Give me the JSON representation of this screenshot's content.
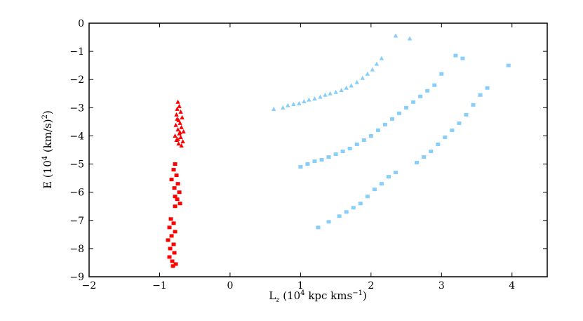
{
  "chart_data": {
    "type": "scatter",
    "title": "",
    "xlabel": "L_z (10^4 kpc kms^-1)",
    "ylabel": "E (10^4 (km/s)^2)",
    "xlabel_parts": {
      "sym": "L",
      "sub": "z",
      "pre": " (10",
      "sup1": "4",
      "mid": " kpc kms",
      "sup2": "−1",
      "post": ")"
    },
    "ylabel_parts": {
      "pre": "E (10",
      "sup1": "4",
      "mid": " (km/s)",
      "sup2": "2",
      "post": ")"
    },
    "xlim": [
      -2,
      4.5
    ],
    "ylim": [
      -9,
      0
    ],
    "xticks": [
      "−2",
      "−1",
      "0",
      "1",
      "2",
      "3",
      "4"
    ],
    "xtick_values": [
      -2,
      -1,
      0,
      1,
      2,
      3,
      4
    ],
    "yticks": [
      "0",
      "−1",
      "−2",
      "−3",
      "−4",
      "−5",
      "−6",
      "−7",
      "−8",
      "−9"
    ],
    "ytick_values": [
      0,
      -1,
      -2,
      -3,
      -4,
      -5,
      -6,
      -7,
      -8,
      -9
    ],
    "grid": false,
    "series": [
      {
        "marker": "triangle",
        "color": "#ff0000",
        "points": [
          [
            -0.74,
            -2.8
          ],
          [
            -0.72,
            -2.95
          ],
          [
            -0.75,
            -3.05
          ],
          [
            -0.7,
            -3.15
          ],
          [
            -0.76,
            -3.25
          ],
          [
            -0.68,
            -3.35
          ],
          [
            -0.73,
            -3.45
          ],
          [
            -0.71,
            -3.55
          ],
          [
            -0.77,
            -3.62
          ],
          [
            -0.69,
            -3.7
          ],
          [
            -0.74,
            -3.78
          ],
          [
            -0.66,
            -3.85
          ],
          [
            -0.72,
            -3.92
          ],
          [
            -0.78,
            -4.0
          ],
          [
            -0.7,
            -4.05
          ],
          [
            -0.74,
            -4.12
          ],
          [
            -0.67,
            -4.2
          ],
          [
            -0.73,
            -4.28
          ],
          [
            -0.69,
            -4.35
          ],
          [
            -0.75,
            -3.4
          ],
          [
            -0.71,
            -3.88
          ],
          [
            -0.76,
            -4.15
          ]
        ]
      },
      {
        "marker": "square",
        "color": "#ff0000",
        "points": [
          [
            -0.78,
            -5.0
          ],
          [
            -0.8,
            -5.2
          ],
          [
            -0.76,
            -5.4
          ],
          [
            -0.83,
            -5.55
          ],
          [
            -0.74,
            -5.7
          ],
          [
            -0.79,
            -5.85
          ],
          [
            -0.72,
            -6.0
          ],
          [
            -0.78,
            -6.15
          ],
          [
            -0.75,
            -6.25
          ],
          [
            -0.71,
            -6.4
          ],
          [
            -0.78,
            -6.5
          ],
          [
            -0.84,
            -6.95
          ],
          [
            -0.8,
            -7.1
          ],
          [
            -0.86,
            -7.25
          ],
          [
            -0.78,
            -7.4
          ],
          [
            -0.83,
            -7.55
          ],
          [
            -0.88,
            -7.7
          ],
          [
            -0.8,
            -7.85
          ],
          [
            -0.85,
            -8.0
          ],
          [
            -0.79,
            -8.15
          ],
          [
            -0.86,
            -8.3
          ],
          [
            -0.82,
            -8.45
          ],
          [
            -0.77,
            -8.55
          ],
          [
            -0.81,
            -8.62
          ]
        ]
      },
      {
        "marker": "triangle",
        "color": "#87cefa",
        "points": [
          [
            0.62,
            -3.05
          ],
          [
            0.75,
            -3.0
          ],
          [
            0.82,
            -2.92
          ],
          [
            0.9,
            -2.88
          ],
          [
            0.98,
            -2.85
          ],
          [
            1.05,
            -2.78
          ],
          [
            1.12,
            -2.72
          ],
          [
            1.2,
            -2.68
          ],
          [
            1.28,
            -2.62
          ],
          [
            1.35,
            -2.55
          ],
          [
            1.42,
            -2.5
          ],
          [
            1.5,
            -2.45
          ],
          [
            1.58,
            -2.38
          ],
          [
            1.65,
            -2.3
          ],
          [
            1.72,
            -2.22
          ],
          [
            1.8,
            -2.1
          ],
          [
            1.88,
            -1.95
          ],
          [
            1.95,
            -1.8
          ],
          [
            2.02,
            -1.65
          ],
          [
            2.08,
            -1.45
          ],
          [
            2.15,
            -1.25
          ],
          [
            2.35,
            -0.45
          ],
          [
            2.55,
            -0.55
          ]
        ]
      },
      {
        "marker": "square",
        "color": "#87cefa",
        "points": [
          [
            1.0,
            -5.1
          ],
          [
            1.1,
            -5.0
          ],
          [
            1.2,
            -4.9
          ],
          [
            1.3,
            -4.85
          ],
          [
            1.4,
            -4.75
          ],
          [
            1.5,
            -4.65
          ],
          [
            1.6,
            -4.55
          ],
          [
            1.7,
            -4.45
          ],
          [
            1.8,
            -4.3
          ],
          [
            1.9,
            -4.15
          ],
          [
            2.0,
            -4.0
          ],
          [
            2.1,
            -3.8
          ],
          [
            2.2,
            -3.6
          ],
          [
            2.3,
            -3.4
          ],
          [
            2.4,
            -3.2
          ],
          [
            2.5,
            -3.0
          ],
          [
            2.6,
            -2.8
          ],
          [
            2.7,
            -2.6
          ],
          [
            2.8,
            -2.4
          ],
          [
            2.9,
            -2.2
          ],
          [
            3.0,
            -1.8
          ],
          [
            3.2,
            -1.15
          ],
          [
            3.3,
            -1.25
          ]
        ]
      },
      {
        "marker": "square",
        "color": "#87cefa",
        "points": [
          [
            1.25,
            -7.25
          ],
          [
            1.4,
            -7.05
          ],
          [
            1.55,
            -6.85
          ],
          [
            1.65,
            -6.7
          ],
          [
            1.75,
            -6.55
          ],
          [
            1.85,
            -6.4
          ],
          [
            1.95,
            -6.15
          ],
          [
            2.05,
            -5.9
          ],
          [
            2.15,
            -5.7
          ],
          [
            2.25,
            -5.45
          ],
          [
            2.35,
            -5.3
          ],
          [
            2.65,
            -4.95
          ],
          [
            2.75,
            -4.75
          ],
          [
            2.85,
            -4.55
          ],
          [
            2.95,
            -4.3
          ],
          [
            3.05,
            -4.05
          ],
          [
            3.15,
            -3.8
          ],
          [
            3.25,
            -3.55
          ],
          [
            3.35,
            -3.25
          ],
          [
            3.45,
            -2.9
          ],
          [
            3.55,
            -2.55
          ],
          [
            3.65,
            -2.3
          ],
          [
            3.95,
            -1.5
          ]
        ]
      }
    ]
  }
}
